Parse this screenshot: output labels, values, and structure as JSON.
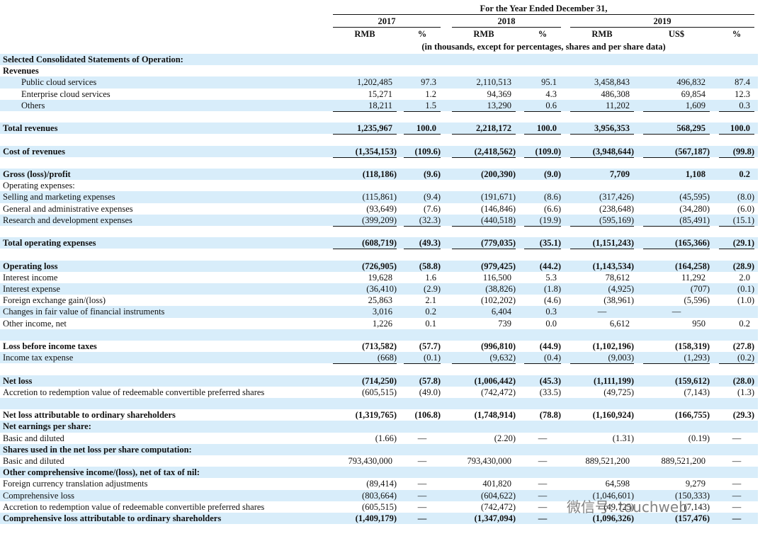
{
  "header": {
    "title": "For the Year Ended December 31,",
    "years": [
      "2017",
      "2018",
      "2019"
    ],
    "columns": [
      "RMB",
      "%",
      "RMB",
      "%",
      "RMB",
      "US$",
      "%"
    ],
    "note": "(in thousands, except for percentages, shares and per share data)"
  },
  "rows": [
    {
      "label": "Selected Consolidated Statements of Operation:"
    },
    {
      "label": "Revenues"
    },
    {
      "label": "Public cloud services",
      "values": [
        "1,202,485",
        "97.3",
        "2,110,513",
        "95.1",
        "3,458,843",
        "496,832",
        "87.4"
      ]
    },
    {
      "label": "Enterprise cloud services",
      "values": [
        "15,271",
        "1.2",
        "94,369",
        "4.3",
        "486,308",
        "69,854",
        "12.3"
      ]
    },
    {
      "label": "Others",
      "values": [
        "18,211",
        "1.5",
        "13,290",
        "0.6",
        "11,202",
        "1,609",
        "0.3"
      ]
    },
    {
      "label": "Total revenues",
      "values": [
        "1,235,967",
        "100.0",
        "2,218,172",
        "100.0",
        "3,956,353",
        "568,295",
        "100.0"
      ]
    },
    {
      "label": "Cost of revenues",
      "values": [
        "(1,354,153)",
        "(109.6)",
        "(2,418,562)",
        "(109.0)",
        "(3,948,644)",
        "(567,187)",
        "(99.8)"
      ]
    },
    {
      "label": "Gross (loss)/profit",
      "values": [
        "(118,186)",
        "(9.6)",
        "(200,390)",
        "(9.0)",
        "7,709",
        "1,108",
        "0.2"
      ]
    },
    {
      "label": "Operating expenses:"
    },
    {
      "label": "Selling and marketing expenses",
      "values": [
        "(115,861)",
        "(9.4)",
        "(191,671)",
        "(8.6)",
        "(317,426)",
        "(45,595)",
        "(8.0)"
      ]
    },
    {
      "label": "General and administrative expenses",
      "values": [
        "(93,649)",
        "(7.6)",
        "(146,846)",
        "(6.6)",
        "(238,648)",
        "(34,280)",
        "(6.0)"
      ]
    },
    {
      "label": "Research and development expenses",
      "values": [
        "(399,209)",
        "(32.3)",
        "(440,518)",
        "(19.9)",
        "(595,169)",
        "(85,491)",
        "(15.1)"
      ]
    },
    {
      "label": "Total operating expenses",
      "values": [
        "(608,719)",
        "(49.3)",
        "(779,035)",
        "(35.1)",
        "(1,151,243)",
        "(165,366)",
        "(29.1)"
      ]
    },
    {
      "label": "Operating loss",
      "values": [
        "(726,905)",
        "(58.8)",
        "(979,425)",
        "(44.2)",
        "(1,143,534)",
        "(164,258)",
        "(28.9)"
      ]
    },
    {
      "label": "Interest income",
      "values": [
        "19,628",
        "1.6",
        "116,500",
        "5.3",
        "78,612",
        "11,292",
        "2.0"
      ]
    },
    {
      "label": "Interest expense",
      "values": [
        "(36,410)",
        "(2.9)",
        "(38,826)",
        "(1.8)",
        "(4,925)",
        "(707)",
        "(0.1)"
      ]
    },
    {
      "label": "Foreign exchange gain/(loss)",
      "values": [
        "25,863",
        "2.1",
        "(102,202)",
        "(4.6)",
        "(38,961)",
        "(5,596)",
        "(1.0)"
      ]
    },
    {
      "label": "Changes in fair value of financial instruments",
      "values": [
        "3,016",
        "0.2",
        "6,404",
        "0.3",
        "—",
        "—",
        null
      ]
    },
    {
      "label": "Other income, net",
      "values": [
        "1,226",
        "0.1",
        "739",
        "0.0",
        "6,612",
        "950",
        "0.2"
      ]
    },
    {
      "label": "Loss before income taxes",
      "values": [
        "(713,582)",
        "(57.7)",
        "(996,810)",
        "(44.9)",
        "(1,102,196)",
        "(158,319)",
        "(27.8)"
      ]
    },
    {
      "label": "Income tax expense",
      "values": [
        "(668)",
        "(0.1)",
        "(9,632)",
        "(0.4)",
        "(9,003)",
        "(1,293)",
        "(0.2)"
      ]
    },
    {
      "label": "Net loss",
      "values": [
        "(714,250)",
        "(57.8)",
        "(1,006,442)",
        "(45.3)",
        "(1,111,199)",
        "(159,612)",
        "(28.0)"
      ]
    },
    {
      "label": "Accretion to redemption value of redeemable convertible preferred shares",
      "values": [
        "(605,515)",
        "(49.0)",
        "(742,472)",
        "(33.5)",
        "(49,725)",
        "(7,143)",
        "(1.3)"
      ]
    },
    {
      "label": "Net loss attributable to ordinary shareholders",
      "values": [
        "(1,319,765)",
        "(106.8)",
        "(1,748,914)",
        "(78.8)",
        "(1,160,924)",
        "(166,755)",
        "(29.3)"
      ]
    },
    {
      "label": "Net earnings per share:"
    },
    {
      "label": "Basic and diluted",
      "values": [
        "(1.66)",
        "—",
        "(2.20)",
        "—",
        "(1.31)",
        "(0.19)",
        "—"
      ]
    },
    {
      "label": "Shares used in the net loss per share computation:"
    },
    {
      "label": "Basic and diluted",
      "values": [
        "793,430,000",
        "—",
        "793,430,000",
        "—",
        "889,521,200",
        "889,521,200",
        "—"
      ]
    },
    {
      "label": "Other comprehensive income/(loss), net of tax of nil:"
    },
    {
      "label": "Foreign currency translation adjustments",
      "values": [
        "(89,414)",
        "—",
        "401,820",
        "—",
        "64,598",
        "9,279",
        "—"
      ]
    },
    {
      "label": "Comprehensive loss",
      "values": [
        "(803,664)",
        "—",
        "(604,622)",
        "—",
        "(1,046,601)",
        "(150,333)",
        "—"
      ]
    },
    {
      "label": "Accretion to redemption value of redeemable convertible preferred shares",
      "values": [
        "(605,515)",
        "—",
        "(742,472)",
        "—",
        "(49,725)",
        "(7,143)",
        "—"
      ]
    },
    {
      "label": "Comprehensive loss attributable to ordinary shareholders",
      "values": [
        "(1,409,179)",
        "—",
        "(1,347,094)",
        "—",
        "(1,096,326)",
        "(157,476)",
        "—"
      ]
    }
  ],
  "watermark": "微信号: touchweb"
}
